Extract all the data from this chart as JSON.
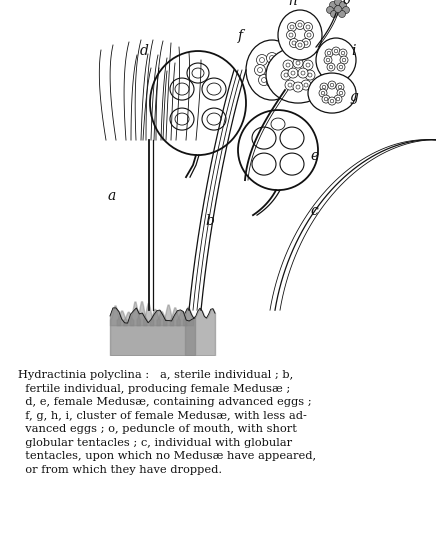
{
  "figsize": [
    4.36,
    5.55
  ],
  "dpi": 100,
  "bg_color": "#ffffff",
  "caption_lines": [
    [
      "Hydractinia polyclina :",
      "  a, sterile individual ; b,"
    ],
    [
      "  fertile individual, producing female Medusæ ;"
    ],
    [
      "  d, e, female Medusæ, containing advanced eggs ;"
    ],
    [
      "  f, g, h, i, cluster of female Medusæ, with less ad-"
    ],
    [
      "  vanced eggs ; o, peduncle of mouth, with short"
    ],
    [
      "  globular tentacles ; c, individual with globular"
    ],
    [
      "  tentacles, upon which no Medusæ have appeared,"
    ],
    [
      "  or from which they have dropped."
    ]
  ],
  "caption_fontsize": 8.2,
  "lc": "#111111"
}
